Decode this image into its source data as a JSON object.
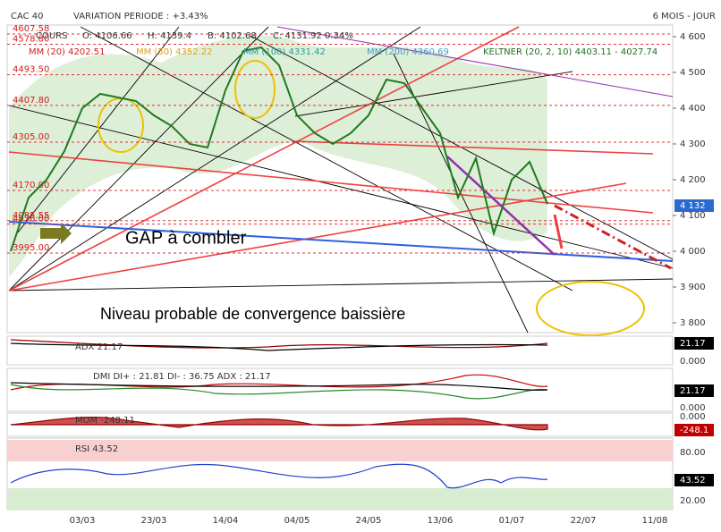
{
  "header": {
    "symbol": "CAC 40",
    "variation": "VARIATION PERIODE : +3.43%",
    "period": "6 MOIS - JOUR"
  },
  "legend": {
    "o": "O: 4106.66",
    "h": "H: 4139.4",
    "b": "B: 4102.68",
    "c": "C: 4131.92 0.34%"
  },
  "indicators": [
    "MM (20) 4202.51",
    "MM (50) 4352.22",
    "MM (100) 4331.42",
    "MM (200) 4360.69",
    "KELTNER (20, 2, 10) 4403.11 - 4027.74"
  ],
  "annotations": {
    "gap": "GAP à combler",
    "convergence": "Niveau probable de convergence baissière"
  },
  "levels": [
    {
      "value": 4607.58,
      "label": "4607.58"
    },
    {
      "value": 4578.8,
      "label": "4578.80"
    },
    {
      "value": 4493.5,
      "label": "4493.50"
    },
    {
      "value": 4407.8,
      "label": "4407.80"
    },
    {
      "value": 4305,
      "label": "4305.00"
    },
    {
      "value": 4170,
      "label": "4170.00"
    },
    {
      "value": 4085.55,
      "label": "4085.55"
    },
    {
      "value": 4076,
      "label": "4076.00"
    },
    {
      "value": 3995,
      "label": "3995.00"
    }
  ],
  "last_price": {
    "value": 4132,
    "label": "4 132"
  },
  "chart_data": {
    "type": "line",
    "categories": [
      null,
      null,
      null,
      null,
      "03/03",
      null,
      null,
      null,
      "23/03",
      null,
      null,
      null,
      "14/04",
      null,
      null,
      null,
      "04/05",
      null,
      null,
      null,
      "24/05",
      null,
      null,
      null,
      "13/06",
      null,
      null,
      null,
      "01/07",
      null,
      null,
      null,
      "22/07",
      null,
      null,
      null,
      "11/08"
    ],
    "series": [
      {
        "name": "COURS",
        "color": "#1f7a1f",
        "values": [
          4000,
          4150,
          4200,
          4280,
          4400,
          4440,
          4430,
          4420,
          4380,
          4350,
          4300,
          4290,
          4450,
          4560,
          4570,
          4520,
          4380,
          4330,
          4300,
          4330,
          4380,
          4480,
          4470,
          4400,
          4330,
          4150,
          4260,
          4050,
          4200,
          4250,
          4132,
          null,
          null,
          null,
          null,
          null,
          null
        ]
      }
    ],
    "ylim": [
      3772.5,
      4632.5
    ],
    "yticks": [
      {
        "value": 4600,
        "label": "4 600"
      },
      {
        "value": 4500,
        "label": "4 500"
      },
      {
        "value": 4400,
        "label": "4 400"
      },
      {
        "value": 4300,
        "label": "4 300"
      },
      {
        "value": 4200,
        "label": "4 200"
      },
      {
        "value": 4100,
        "label": "4 100"
      },
      {
        "value": 4000,
        "label": "4 000"
      },
      {
        "value": 3900,
        "label": "3 900"
      },
      {
        "value": 3800,
        "label": "3 800"
      }
    ]
  },
  "panels": [
    {
      "label": "ADX 21.17",
      "value_tag": "21.17",
      "ticks": [
        "0.000"
      ]
    },
    {
      "label": "DMI DI+ : 21.81 DI- : 36.75 ADX : 21.17",
      "value_tag": "21.17",
      "ticks": [
        "0.000"
      ]
    },
    {
      "label": "MOM -248.11",
      "value_tag": "-248.1",
      "ticks": [
        "0.000"
      ]
    },
    {
      "label": "RSI 43.52",
      "value_tag": "43.52",
      "ticks": [
        "80.00",
        "20.00"
      ]
    }
  ]
}
